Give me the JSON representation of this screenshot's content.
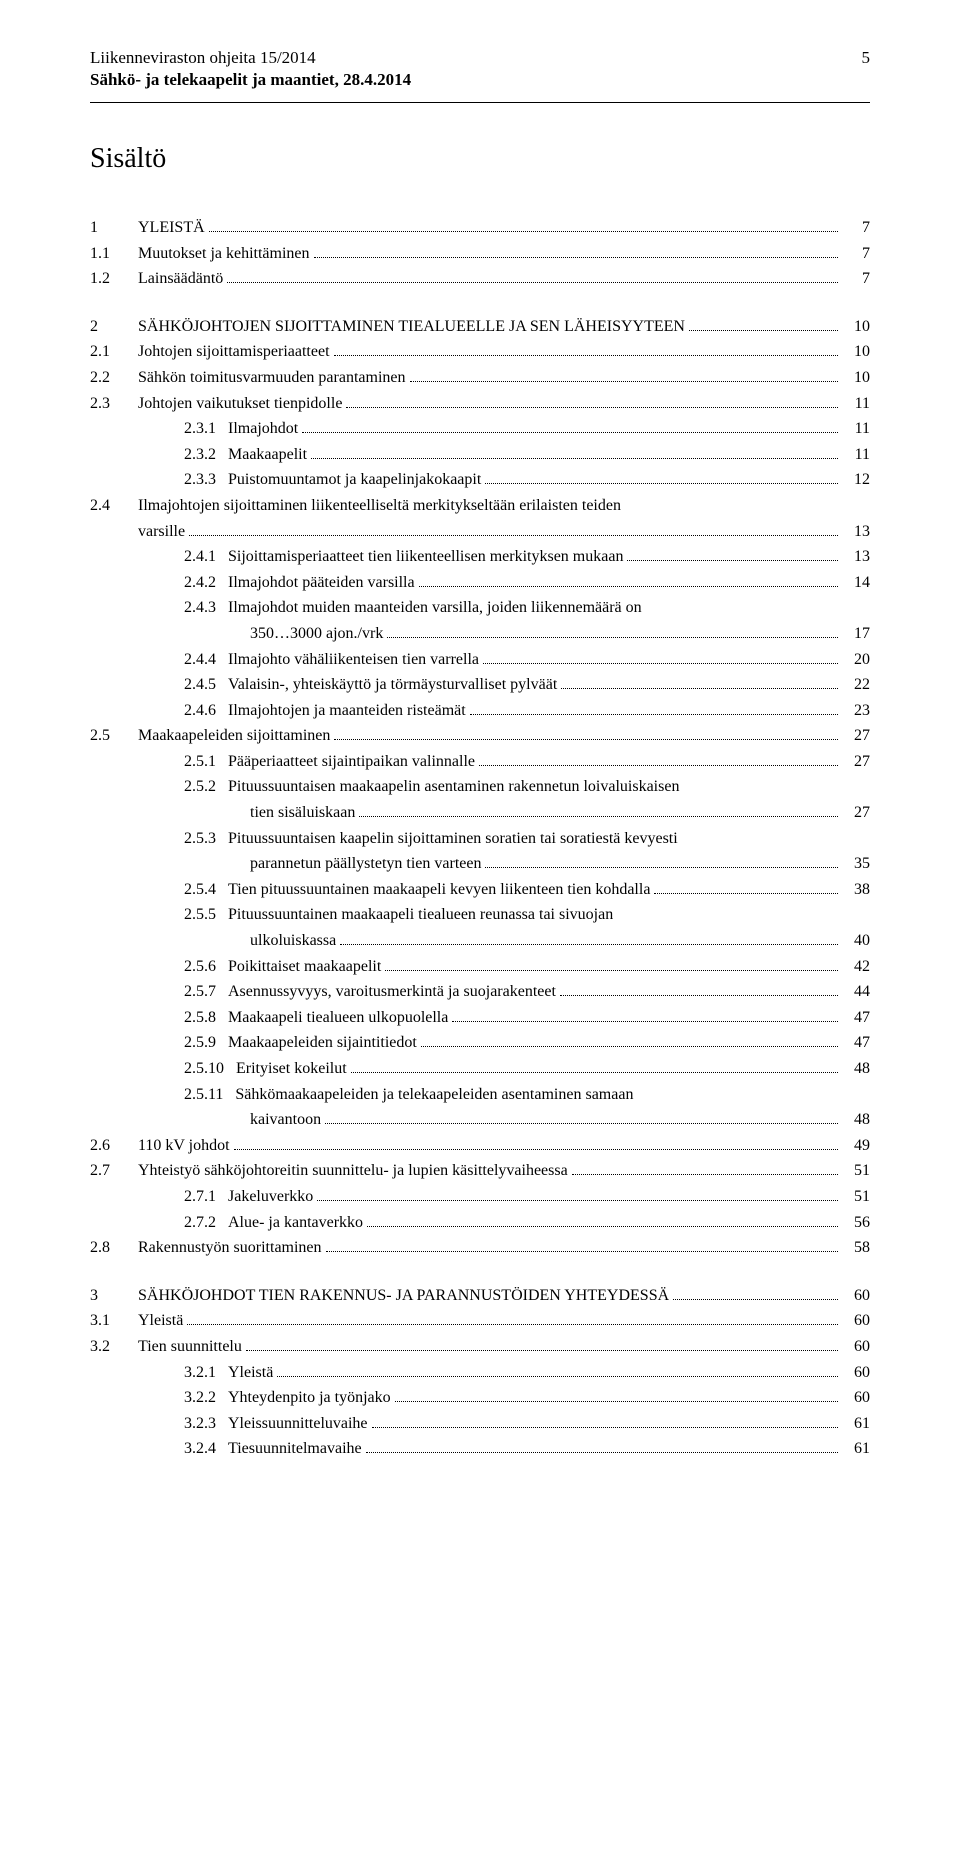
{
  "header": {
    "title": "Liikenneviraston ohjeita 15/2014",
    "subtitle": "Sähkö- ja telekaapelit ja maantiet, 28.4.2014",
    "page": "5"
  },
  "mainTitle": "Sisältö",
  "toc": {
    "block1": {
      "r1": {
        "num": "1",
        "label": "YLEISTÄ",
        "page": "7"
      },
      "r2": {
        "num": "1.1",
        "label": "Muutokset ja kehittäminen",
        "page": "7"
      },
      "r3": {
        "num": "1.2",
        "label": "Lainsäädäntö",
        "page": "7"
      }
    },
    "block2": {
      "r1": {
        "num": "2",
        "label": "SÄHKÖJOHTOJEN SIJOITTAMINEN TIEALUEELLE JA SEN LÄHEISYYTEEN",
        "page": "10"
      },
      "r2": {
        "num": "2.1",
        "label": "Johtojen sijoittamisperiaatteet",
        "page": "10"
      },
      "r3": {
        "num": "2.2",
        "label": "Sähkön toimitusvarmuuden parantaminen",
        "page": "10"
      },
      "r4": {
        "num": "2.3",
        "label": "Johtojen vaikutukset tienpidolle",
        "page": "11"
      },
      "r5": {
        "num": "2.3.1",
        "label": "Ilmajohdot",
        "page": "11"
      },
      "r6": {
        "num": "2.3.2",
        "label": "Maakaapelit",
        "page": "11"
      },
      "r7": {
        "num": "2.3.3",
        "label": "Puistomuuntamot ja kaapelinjakokaapit",
        "page": "12"
      },
      "r8": {
        "num": "2.4",
        "label": "Ilmajohtojen sijoittaminen liikenteelliseltä merkitykseltään erilaisten teiden",
        "cont": "varsille",
        "page": "13"
      },
      "r9": {
        "num": "2.4.1",
        "label": "Sijoittamisperiaatteet tien liikenteellisen merkityksen mukaan",
        "page": "13"
      },
      "r10": {
        "num": "2.4.2",
        "label": "Ilmajohdot pääteiden varsilla",
        "page": "14"
      },
      "r11": {
        "num": "2.4.3",
        "label": "Ilmajohdot muiden maanteiden varsilla, joiden liikennemäärä on",
        "cont": "350…3000 ajon./vrk",
        "page": "17"
      },
      "r12": {
        "num": "2.4.4",
        "label": "Ilmajohto vähäliikenteisen tien varrella",
        "page": "20"
      },
      "r13": {
        "num": "2.4.5",
        "label": "Valaisin-, yhteiskäyttö ja törmäysturvalliset pylväät",
        "page": "22"
      },
      "r14": {
        "num": "2.4.6",
        "label": "Ilmajohtojen ja maanteiden risteämät",
        "page": "23"
      },
      "r15": {
        "num": "2.5",
        "label": "Maakaapeleiden sijoittaminen",
        "page": "27"
      },
      "r16": {
        "num": "2.5.1",
        "label": "Pääperiaatteet sijaintipaikan valinnalle",
        "page": "27"
      },
      "r17": {
        "num": "2.5.2",
        "label": "Pituussuuntaisen maakaapelin asentaminen rakennetun loivaluiskaisen",
        "cont": "tien sisäluiskaan",
        "page": "27"
      },
      "r18": {
        "num": "2.5.3",
        "label": "Pituussuuntaisen kaapelin sijoittaminen soratien tai soratiestä kevyesti",
        "cont": "parannetun päällystetyn tien varteen",
        "page": "35"
      },
      "r19": {
        "num": "2.5.4",
        "label": "Tien pituussuuntainen maakaapeli kevyen liikenteen tien kohdalla",
        "page": "38"
      },
      "r20": {
        "num": "2.5.5",
        "label": "Pituussuuntainen maakaapeli tiealueen reunassa tai sivuojan",
        "cont": "ulkoluiskassa",
        "page": "40"
      },
      "r21": {
        "num": "2.5.6",
        "label": "Poikittaiset maakaapelit",
        "page": "42"
      },
      "r22": {
        "num": "2.5.7",
        "label": "Asennussyvyys, varoitusmerkintä ja suojarakenteet",
        "page": "44"
      },
      "r23": {
        "num": "2.5.8",
        "label": "Maakaapeli tiealueen ulkopuolella",
        "page": "47"
      },
      "r24": {
        "num": "2.5.9",
        "label": "Maakaapeleiden sijaintitiedot",
        "page": "47"
      },
      "r25": {
        "num": "2.5.10",
        "label": "Erityiset kokeilut",
        "page": "48"
      },
      "r26": {
        "num": "2.5.11",
        "label": "Sähkömaakaapeleiden ja telekaapeleiden asentaminen samaan",
        "cont": "kaivantoon",
        "page": "48"
      },
      "r27": {
        "num": "2.6",
        "label": "110 kV johdot",
        "page": "49"
      },
      "r28": {
        "num": "2.7",
        "label": "Yhteistyö sähköjohtoreitin suunnittelu- ja lupien käsittelyvaiheessa",
        "page": "51"
      },
      "r29": {
        "num": "2.7.1",
        "label": "Jakeluverkko",
        "page": "51"
      },
      "r30": {
        "num": "2.7.2",
        "label": "Alue- ja kantaverkko",
        "page": "56"
      },
      "r31": {
        "num": "2.8",
        "label": "Rakennustyön suorittaminen",
        "page": "58"
      }
    },
    "block3": {
      "r1": {
        "num": "3",
        "label": "SÄHKÖJOHDOT TIEN RAKENNUS- JA PARANNUSTÖIDEN YHTEYDESSÄ",
        "page": "60"
      },
      "r2": {
        "num": "3.1",
        "label": "Yleistä",
        "page": "60"
      },
      "r3": {
        "num": "3.2",
        "label": "Tien suunnittelu",
        "page": "60"
      },
      "r4": {
        "num": "3.2.1",
        "label": "Yleistä",
        "page": "60"
      },
      "r5": {
        "num": "3.2.2",
        "label": "Yhteydenpito ja työnjako",
        "page": "60"
      },
      "r6": {
        "num": "3.2.3",
        "label": "Yleissuunnitteluvaihe",
        "page": "61"
      },
      "r7": {
        "num": "3.2.4",
        "label": "Tiesuunnitelmavaihe",
        "page": "61"
      }
    }
  }
}
